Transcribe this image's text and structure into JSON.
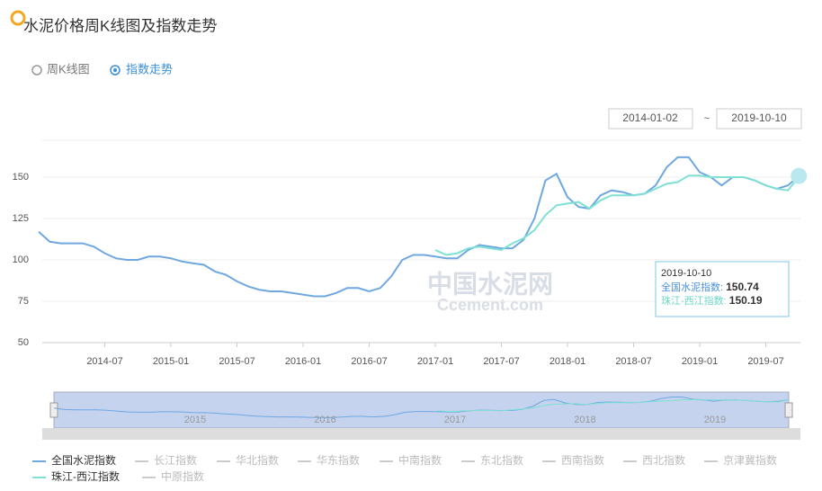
{
  "header": {
    "title": "水泥价格周K线图及指数走势",
    "options": [
      "周K线图",
      "指数走势"
    ]
  },
  "date_range": {
    "start": "2014-01-02",
    "end": "2019-10-10"
  },
  "watermark": {
    "cn": "中国水泥网",
    "en": "Ccement.com"
  },
  "chart_data": {
    "type": "line",
    "categories": [
      null,
      null,
      null,
      null,
      null,
      null,
      "2014-07",
      null,
      null,
      null,
      null,
      null,
      "2015-01",
      null,
      null,
      null,
      null,
      null,
      "2015-07",
      null,
      null,
      null,
      null,
      null,
      "2016-01",
      null,
      null,
      null,
      null,
      null,
      "2016-07",
      null,
      null,
      null,
      null,
      null,
      "2017-01",
      null,
      null,
      null,
      null,
      null,
      "2017-07",
      null,
      null,
      null,
      null,
      null,
      "2018-01",
      null,
      null,
      null,
      null,
      null,
      "2018-07",
      null,
      null,
      null,
      null,
      null,
      "2019-01",
      null,
      null,
      null,
      null,
      null,
      "2019-07",
      null,
      null,
      null
    ],
    "series": [
      {
        "name": "全国水泥指数",
        "color": "#6fa8e0",
        "values": [
          117,
          111,
          110,
          110,
          110,
          108,
          104,
          101,
          100,
          100,
          102,
          102,
          101,
          99,
          98,
          97,
          93,
          91,
          87,
          84,
          82,
          81,
          81,
          80,
          79,
          78,
          78,
          80,
          83,
          83,
          81,
          83,
          90,
          100,
          103,
          103,
          102,
          101,
          101,
          106,
          109,
          108,
          107,
          107,
          112,
          125,
          148,
          152,
          138,
          132,
          131,
          139,
          142,
          141,
          139,
          140,
          145,
          156,
          162,
          162,
          153,
          150,
          145,
          150,
          150,
          148,
          145,
          143,
          145,
          150.74
        ]
      },
      {
        "name": "珠江-西江指数",
        "color": "#7fe0d4",
        "values": [
          null,
          null,
          null,
          null,
          null,
          null,
          null,
          null,
          null,
          null,
          null,
          null,
          null,
          null,
          null,
          null,
          null,
          null,
          null,
          null,
          null,
          null,
          null,
          null,
          null,
          null,
          null,
          null,
          null,
          null,
          null,
          null,
          null,
          null,
          null,
          null,
          106,
          103,
          104,
          107,
          108,
          107,
          106,
          110,
          113,
          118,
          127,
          133,
          134,
          135,
          131,
          136,
          139,
          139,
          139,
          140,
          143,
          146,
          147,
          151,
          151,
          150,
          150,
          150,
          150,
          148,
          145,
          143,
          142,
          150.19
        ]
      }
    ],
    "ylim": [
      50,
      175
    ],
    "yticks": [
      50,
      75,
      100,
      125,
      150
    ],
    "grid": true,
    "tooltip_date": "2019-10-10",
    "zoom_labels": [
      "2015",
      "2016",
      "2017",
      "2018",
      "2019"
    ],
    "legend_inactive": [
      "长江指数",
      "华北指数",
      "华东指数",
      "中南指数",
      "东北指数",
      "西南指数",
      "西北指数",
      "京津冀指数",
      "中原指数"
    ]
  }
}
